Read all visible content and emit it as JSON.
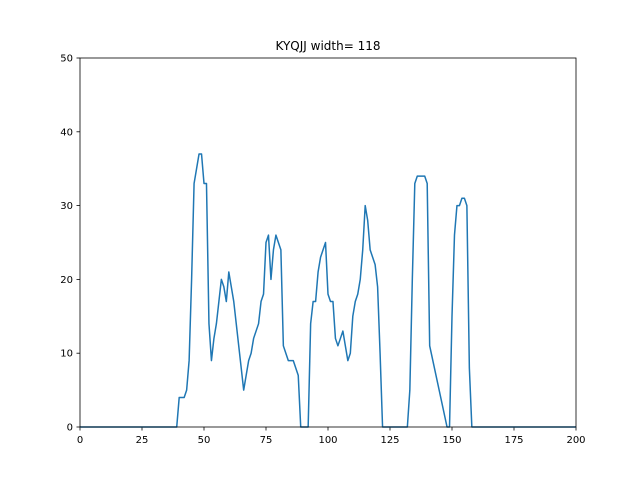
{
  "chart_data": {
    "type": "line",
    "title": "KYQJJ width= 118",
    "xlabel": "",
    "ylabel": "",
    "xlim": [
      0,
      200
    ],
    "ylim": [
      0,
      50
    ],
    "xticks": [
      0,
      25,
      50,
      75,
      100,
      125,
      150,
      175,
      200
    ],
    "yticks": [
      0,
      10,
      20,
      30,
      40,
      50
    ],
    "grid": false,
    "legend": "none",
    "series": [
      {
        "color": "#1f77b4",
        "x": [
          0,
          38,
          39,
          40,
          41,
          42,
          43,
          44,
          45,
          46,
          47,
          48,
          49,
          50,
          51,
          52,
          53,
          54,
          55,
          56,
          57,
          58,
          59,
          60,
          61,
          62,
          63,
          64,
          65,
          66,
          67,
          68,
          69,
          70,
          71,
          72,
          73,
          74,
          75,
          76,
          77,
          78,
          79,
          80,
          81,
          82,
          83,
          84,
          85,
          86,
          87,
          88,
          89,
          90,
          91,
          92,
          93,
          94,
          95,
          96,
          97,
          98,
          99,
          100,
          101,
          102,
          103,
          104,
          105,
          106,
          107,
          108,
          109,
          110,
          111,
          112,
          113,
          114,
          115,
          116,
          117,
          118,
          119,
          120,
          121,
          122,
          123,
          131,
          132,
          133,
          134,
          135,
          136,
          137,
          138,
          139,
          140,
          141,
          148,
          149,
          150,
          151,
          152,
          153,
          154,
          155,
          156,
          157,
          158,
          200
        ],
        "y": [
          0,
          0,
          0,
          4,
          4,
          4,
          5,
          9,
          20,
          33,
          35,
          37,
          37,
          33,
          33,
          14,
          9,
          12,
          14,
          17,
          20,
          19,
          17,
          21,
          19,
          17,
          14,
          11,
          8,
          5,
          7,
          9,
          10,
          12,
          13,
          14,
          17,
          18,
          25,
          26,
          20,
          24,
          26,
          25,
          24,
          11,
          10,
          9,
          9,
          9,
          8,
          7,
          0,
          0,
          0,
          0,
          14,
          17,
          17,
          21,
          23,
          24,
          25,
          18,
          17,
          17,
          12,
          11,
          12,
          13,
          11,
          9,
          10,
          15,
          17,
          18,
          20,
          24,
          30,
          28,
          24,
          23,
          22,
          19,
          10,
          0,
          0,
          0,
          0,
          5,
          20,
          33,
          34,
          34,
          34,
          34,
          33,
          11,
          0,
          0,
          15,
          26,
          30,
          30,
          31,
          31,
          30,
          8,
          0,
          0
        ]
      }
    ]
  }
}
